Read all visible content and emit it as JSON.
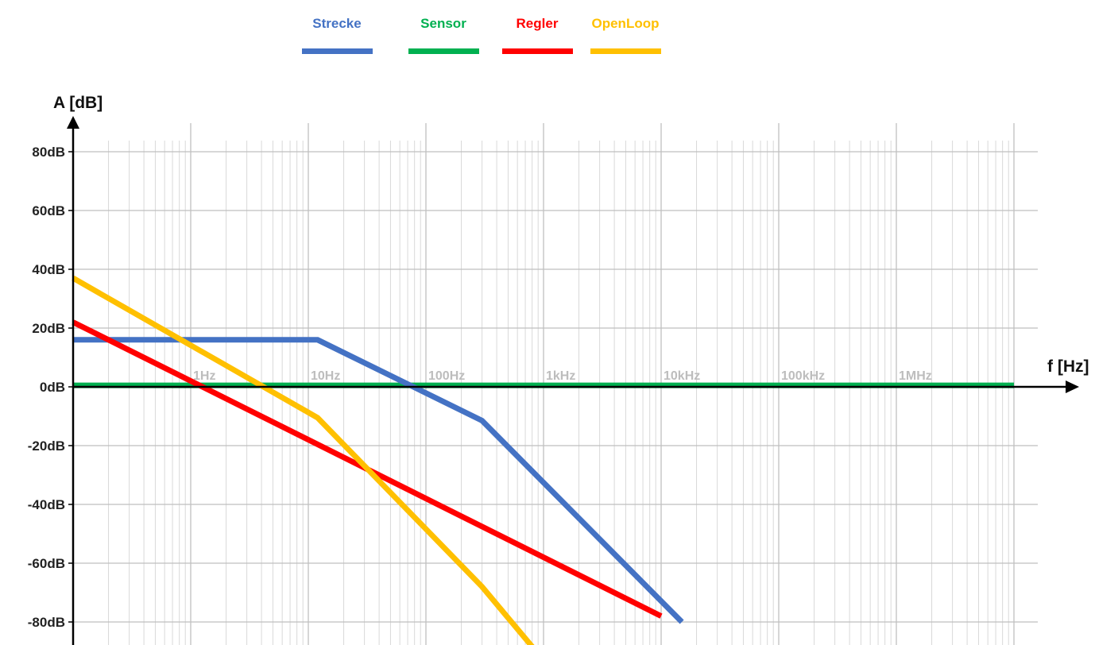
{
  "chart_data": {
    "type": "line",
    "xlabel": "f [Hz]",
    "ylabel": "A [dB]",
    "x_scale": "log",
    "xlim": [
      0.1,
      20000000
    ],
    "ylim": [
      -88,
      90
    ],
    "grid": true,
    "legend_position": "top",
    "y_ticks": [
      {
        "value": 80,
        "label": "80dB"
      },
      {
        "value": 60,
        "label": "60dB"
      },
      {
        "value": 40,
        "label": "40dB"
      },
      {
        "value": 20,
        "label": "20dB"
      },
      {
        "value": 0,
        "label": "0dB"
      },
      {
        "value": -20,
        "label": "-20dB"
      },
      {
        "value": -40,
        "label": "-40dB"
      },
      {
        "value": -60,
        "label": "-60dB"
      },
      {
        "value": -80,
        "label": "-80dB"
      }
    ],
    "x_ticks": [
      {
        "value": 1,
        "label": "1Hz"
      },
      {
        "value": 10,
        "label": "10Hz"
      },
      {
        "value": 100,
        "label": "100Hz"
      },
      {
        "value": 1000,
        "label": "1kHz"
      },
      {
        "value": 10000,
        "label": "10kHz"
      },
      {
        "value": 100000,
        "label": "100kHz"
      },
      {
        "value": 1000000,
        "label": "1MHz"
      }
    ],
    "series": [
      {
        "name": "Strecke",
        "color": "#4472c4",
        "points": [
          [
            0.1,
            16
          ],
          [
            12,
            16
          ],
          [
            300,
            -11.5
          ],
          [
            15000,
            -80
          ]
        ]
      },
      {
        "name": "Sensor",
        "color": "#00b050",
        "points": [
          [
            0.1,
            0.5
          ],
          [
            10000000,
            0.5
          ]
        ]
      },
      {
        "name": "Regler",
        "color": "#ff0000",
        "points": [
          [
            0.1,
            22
          ],
          [
            10000,
            -78
          ]
        ]
      },
      {
        "name": "OpenLoop",
        "color": "#ffc000",
        "points": [
          [
            0.1,
            37
          ],
          [
            12,
            -10.5
          ],
          [
            300,
            -68
          ],
          [
            1000,
            -93
          ]
        ]
      }
    ]
  }
}
